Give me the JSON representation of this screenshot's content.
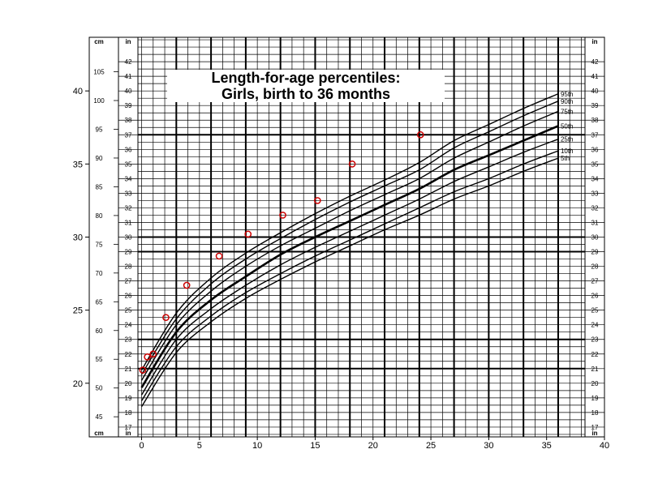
{
  "chart_data": {
    "type": "line",
    "title": "Length-for-age percentiles:",
    "subtitle": "Girls, birth to 36 months",
    "x_axis": {
      "range": [
        -2,
        40
      ],
      "ticks": [
        0,
        5,
        10,
        15,
        20,
        25,
        30,
        35,
        40
      ]
    },
    "left_outer_axis": {
      "range": [
        16.33,
        43.67
      ],
      "ticks": [
        20,
        25,
        30,
        35,
        40
      ]
    },
    "cm_scale": {
      "unit_label": "cm",
      "range": [
        41.5,
        111
      ],
      "ticks": [
        45,
        50,
        55,
        60,
        65,
        70,
        75,
        80,
        85,
        90,
        95,
        100,
        105
      ]
    },
    "in_scale": {
      "unit_label": "in",
      "range": [
        16.33,
        43.67
      ],
      "ticks": [
        17,
        18,
        19,
        20,
        21,
        22,
        23,
        24,
        25,
        26,
        27,
        28,
        29,
        30,
        31,
        32,
        33,
        34,
        35,
        36,
        37,
        38,
        39,
        40,
        41,
        42
      ]
    },
    "bold_gridlines_x": [
      3,
      6,
      9,
      12,
      15,
      18,
      21,
      24,
      27,
      30,
      33,
      36
    ],
    "bold_gridlines_y": [
      21,
      23,
      29,
      30,
      37
    ],
    "series": [
      {
        "name": "95th",
        "x": [
          0,
          3,
          6,
          9,
          12,
          15,
          18,
          21,
          24,
          27,
          30,
          33,
          36
        ],
        "y": [
          20.9,
          24.8,
          27.2,
          28.9,
          30.3,
          31.6,
          32.8,
          33.9,
          35.1,
          36.6,
          37.7,
          38.8,
          39.8
        ]
      },
      {
        "name": "90th",
        "x": [
          0,
          3,
          6,
          9,
          12,
          15,
          18,
          21,
          24,
          27,
          30,
          33,
          36
        ],
        "y": [
          20.6,
          24.4,
          26.8,
          28.5,
          29.9,
          31.2,
          32.4,
          33.5,
          34.6,
          36.1,
          37.2,
          38.3,
          39.3
        ]
      },
      {
        "name": "75th",
        "x": [
          0,
          3,
          6,
          9,
          12,
          15,
          18,
          21,
          24,
          27,
          30,
          33,
          36
        ],
        "y": [
          20.2,
          24.0,
          26.3,
          28.0,
          29.4,
          30.6,
          31.8,
          32.9,
          34.0,
          35.4,
          36.5,
          37.6,
          38.6
        ]
      },
      {
        "name": "50th",
        "x": [
          0,
          3,
          6,
          9,
          12,
          15,
          18,
          21,
          24,
          27,
          30,
          33,
          36
        ],
        "y": [
          19.7,
          23.5,
          25.7,
          27.3,
          28.8,
          30.0,
          31.1,
          32.2,
          33.3,
          34.6,
          35.6,
          36.6,
          37.6
        ]
      },
      {
        "name": "25th",
        "x": [
          0,
          3,
          6,
          9,
          12,
          15,
          18,
          21,
          24,
          27,
          30,
          33,
          36
        ],
        "y": [
          19.2,
          23.0,
          25.1,
          26.7,
          28.1,
          29.3,
          30.4,
          31.5,
          32.6,
          33.8,
          34.8,
          35.8,
          36.7
        ]
      },
      {
        "name": "10th",
        "x": [
          0,
          3,
          6,
          9,
          12,
          15,
          18,
          21,
          24,
          27,
          30,
          33,
          36
        ],
        "y": [
          18.8,
          22.5,
          24.6,
          26.2,
          27.5,
          28.7,
          29.8,
          30.9,
          32.0,
          33.1,
          34.0,
          35.0,
          35.9
        ]
      },
      {
        "name": "5th",
        "x": [
          0,
          3,
          6,
          9,
          12,
          15,
          18,
          21,
          24,
          27,
          30,
          33,
          36
        ],
        "y": [
          18.4,
          22.1,
          24.2,
          25.8,
          27.1,
          28.3,
          29.4,
          30.5,
          31.5,
          32.6,
          33.5,
          34.5,
          35.4
        ]
      }
    ],
    "percentile_labels": [
      "95th",
      "90th",
      "75th",
      "50th",
      "25th",
      "10th",
      "5th"
    ],
    "measurements": {
      "x": [
        0.1,
        0.5,
        1.0,
        2.1,
        3.9,
        6.7,
        9.2,
        12.2,
        15.2,
        18.2,
        24.1
      ],
      "y": [
        20.9,
        21.8,
        22.0,
        24.5,
        26.7,
        28.7,
        30.2,
        31.5,
        32.5,
        35.0,
        37.0
      ]
    },
    "grid": true,
    "colors": {
      "background": "#ffffff",
      "grid": "#000000",
      "curves": "#000000",
      "measurements": "#cc0000"
    }
  }
}
